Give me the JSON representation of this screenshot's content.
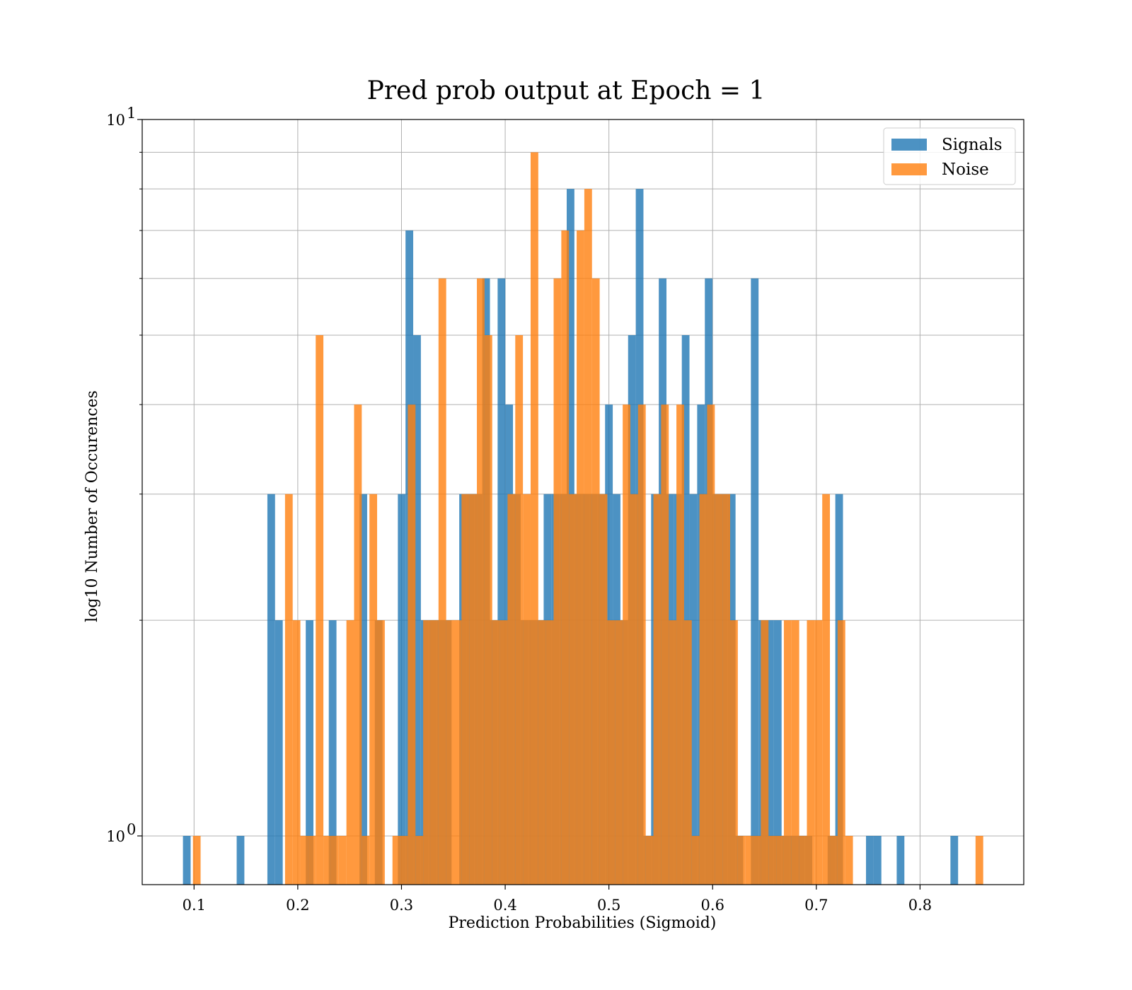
{
  "chart_data": {
    "type": "bar",
    "title": "Pred prob output at Epoch = 1",
    "xlabel": "Prediction Probabilities (Sigmoid)",
    "ylabel": "log10 Number of Occurences",
    "xlim": [
      0.05,
      0.9
    ],
    "ylim": [
      0.855,
      10
    ],
    "y_scale": "log",
    "grid": true,
    "legend_position": "upper right",
    "bar_alpha": 0.8,
    "x_ticks": [
      {
        "value": 0.1,
        "label": "0.1"
      },
      {
        "value": 0.2,
        "label": "0.2"
      },
      {
        "value": 0.3,
        "label": "0.3"
      },
      {
        "value": 0.4,
        "label": "0.4"
      },
      {
        "value": 0.5,
        "label": "0.5"
      },
      {
        "value": 0.6,
        "label": "0.6"
      },
      {
        "value": 0.7,
        "label": "0.7"
      },
      {
        "value": 0.8,
        "label": "0.8"
      }
    ],
    "y_ticks": [
      {
        "value": 1,
        "label": "10",
        "exp": "0"
      },
      {
        "value": 10,
        "label": "10",
        "exp": "1"
      }
    ],
    "y_minor_ticks": [
      2,
      3,
      4,
      5,
      6,
      7,
      8,
      9
    ],
    "series": [
      {
        "name": "Signals",
        "color": "#1f77b4",
        "bin_width": 0.0074,
        "bins": [
          [
            0.0893,
            1
          ],
          [
            0.1411,
            1
          ],
          [
            0.1707,
            3
          ],
          [
            0.1781,
            2
          ],
          [
            0.2077,
            2
          ],
          [
            0.2299,
            2
          ],
          [
            0.2595,
            3
          ],
          [
            0.2743,
            2
          ],
          [
            0.2965,
            3
          ],
          [
            0.3039,
            7
          ],
          [
            0.3113,
            5
          ],
          [
            0.3187,
            2
          ],
          [
            0.3261,
            2
          ],
          [
            0.3335,
            2
          ],
          [
            0.3409,
            2
          ],
          [
            0.3557,
            3
          ],
          [
            0.3631,
            3
          ],
          [
            0.3705,
            3
          ],
          [
            0.3779,
            6
          ],
          [
            0.3853,
            2
          ],
          [
            0.3927,
            6
          ],
          [
            0.4001,
            4
          ],
          [
            0.4075,
            3
          ],
          [
            0.4149,
            2
          ],
          [
            0.4223,
            2
          ],
          [
            0.4297,
            2
          ],
          [
            0.4371,
            3
          ],
          [
            0.4445,
            3
          ],
          [
            0.4519,
            3
          ],
          [
            0.4593,
            8
          ],
          [
            0.4667,
            3
          ],
          [
            0.4741,
            3
          ],
          [
            0.4815,
            3
          ],
          [
            0.4889,
            3
          ],
          [
            0.4963,
            4
          ],
          [
            0.5037,
            3
          ],
          [
            0.5111,
            2
          ],
          [
            0.5185,
            5
          ],
          [
            0.5259,
            8
          ],
          [
            0.5333,
            1
          ],
          [
            0.5407,
            3
          ],
          [
            0.5481,
            6
          ],
          [
            0.5555,
            3
          ],
          [
            0.5629,
            3
          ],
          [
            0.5703,
            5
          ],
          [
            0.5777,
            3
          ],
          [
            0.5851,
            4
          ],
          [
            0.5925,
            6
          ],
          [
            0.5999,
            3
          ],
          [
            0.6073,
            3
          ],
          [
            0.6147,
            3
          ],
          [
            0.6221,
            1
          ],
          [
            0.6369,
            6
          ],
          [
            0.6443,
            2
          ],
          [
            0.6517,
            2
          ],
          [
            0.6591,
            2
          ],
          [
            0.6665,
            1
          ],
          [
            0.6739,
            1
          ],
          [
            0.6813,
            1
          ],
          [
            0.6887,
            1
          ],
          [
            0.7109,
            1
          ],
          [
            0.7183,
            3
          ],
          [
            0.7479,
            1
          ],
          [
            0.7553,
            1
          ],
          [
            0.7775,
            1
          ],
          [
            0.8293,
            1
          ]
        ]
      },
      {
        "name": "Noise",
        "color": "#ff7f0e",
        "bin_width": 0.0074,
        "bins": [
          [
            0.0989,
            1
          ],
          [
            0.1877,
            3
          ],
          [
            0.1951,
            2
          ],
          [
            0.2025,
            1
          ],
          [
            0.2099,
            1
          ],
          [
            0.2173,
            5
          ],
          [
            0.2247,
            1
          ],
          [
            0.2321,
            1
          ],
          [
            0.2395,
            1
          ],
          [
            0.2469,
            2
          ],
          [
            0.2543,
            4
          ],
          [
            0.2617,
            1
          ],
          [
            0.2691,
            3
          ],
          [
            0.2765,
            2
          ],
          [
            0.2913,
            1
          ],
          [
            0.2987,
            1
          ],
          [
            0.3061,
            4
          ],
          [
            0.3135,
            1
          ],
          [
            0.3209,
            2
          ],
          [
            0.3283,
            2
          ],
          [
            0.3357,
            6
          ],
          [
            0.3431,
            2
          ],
          [
            0.3505,
            2
          ],
          [
            0.3579,
            3
          ],
          [
            0.3653,
            3
          ],
          [
            0.3727,
            6
          ],
          [
            0.3801,
            5
          ],
          [
            0.3875,
            2
          ],
          [
            0.3949,
            2
          ],
          [
            0.4023,
            3
          ],
          [
            0.4097,
            5
          ],
          [
            0.4171,
            3
          ],
          [
            0.4245,
            9
          ],
          [
            0.4319,
            2
          ],
          [
            0.4393,
            2
          ],
          [
            0.4467,
            6
          ],
          [
            0.4541,
            7
          ],
          [
            0.4615,
            3
          ],
          [
            0.4689,
            7
          ],
          [
            0.4763,
            8
          ],
          [
            0.4837,
            6
          ],
          [
            0.4911,
            3
          ],
          [
            0.4985,
            2
          ],
          [
            0.5059,
            2
          ],
          [
            0.5133,
            4
          ],
          [
            0.5207,
            3
          ],
          [
            0.5281,
            4
          ],
          [
            0.5355,
            1
          ],
          [
            0.5429,
            3
          ],
          [
            0.5503,
            4
          ],
          [
            0.5577,
            2
          ],
          [
            0.5651,
            4
          ],
          [
            0.5725,
            2
          ],
          [
            0.5799,
            1
          ],
          [
            0.5873,
            3
          ],
          [
            0.5947,
            4
          ],
          [
            0.6021,
            3
          ],
          [
            0.6095,
            3
          ],
          [
            0.6169,
            2
          ],
          [
            0.6243,
            1
          ],
          [
            0.6317,
            1
          ],
          [
            0.6391,
            1
          ],
          [
            0.6465,
            2
          ],
          [
            0.6539,
            1
          ],
          [
            0.6613,
            1
          ],
          [
            0.6687,
            2
          ],
          [
            0.6761,
            2
          ],
          [
            0.6835,
            1
          ],
          [
            0.6909,
            2
          ],
          [
            0.6983,
            2
          ],
          [
            0.7057,
            3
          ],
          [
            0.7131,
            1
          ],
          [
            0.7205,
            2
          ],
          [
            0.7279,
            1
          ],
          [
            0.8535,
            1
          ]
        ]
      }
    ]
  }
}
